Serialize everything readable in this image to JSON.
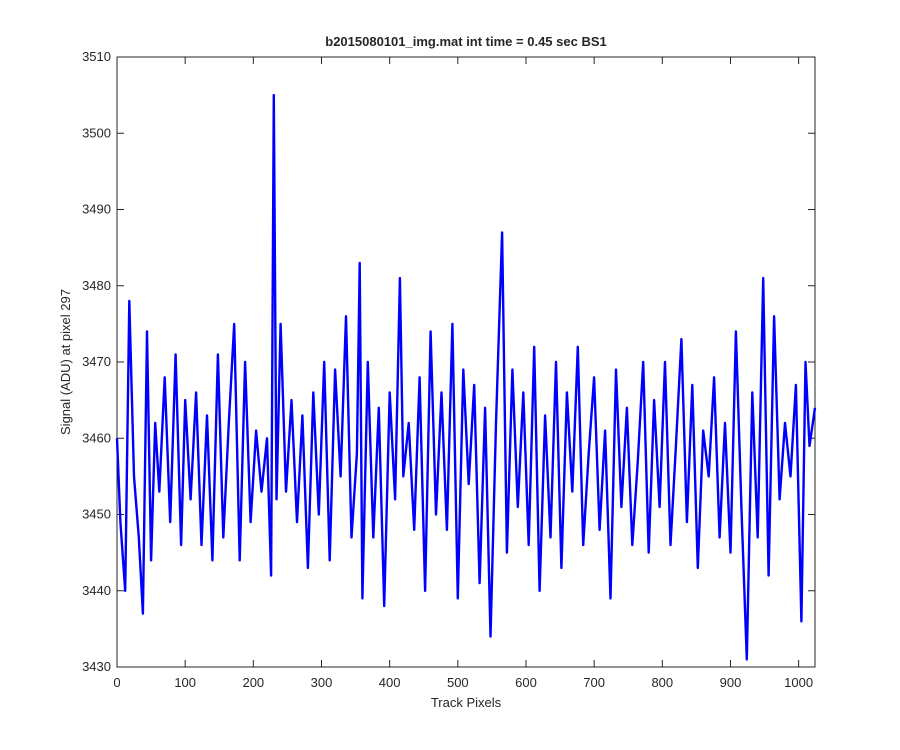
{
  "chart_data": {
    "type": "line",
    "title": "b2015080101_img.mat int time = 0.45 sec   BS1",
    "xlabel": "Track Pixels",
    "ylabel": "Signal (ADU) at pixel 297",
    "xlim": [
      0,
      1024
    ],
    "ylim": [
      3430,
      3510
    ],
    "xticks": [
      0,
      100,
      200,
      300,
      400,
      500,
      600,
      700,
      800,
      900,
      1000
    ],
    "yticks": [
      3430,
      3440,
      3450,
      3460,
      3470,
      3480,
      3490,
      3500,
      3510
    ],
    "grid": false,
    "legend": "none",
    "series_color": "#0000ff",
    "axis_color": "#262626",
    "series": [
      {
        "x": [
          0,
          5,
          12,
          18,
          25,
          32,
          38,
          44,
          50,
          56,
          62,
          70,
          78,
          86,
          94,
          100,
          108,
          116,
          124,
          132,
          140,
          148,
          156,
          164,
          172,
          180,
          188,
          196,
          204,
          212,
          220,
          226,
          230,
          234,
          240,
          248,
          256,
          264,
          272,
          280,
          288,
          296,
          304,
          312,
          320,
          328,
          336,
          344,
          352,
          356,
          360,
          368,
          376,
          384,
          392,
          400,
          408,
          415,
          420,
          428,
          436,
          444,
          452,
          460,
          468,
          476,
          484,
          492,
          500,
          508,
          516,
          524,
          532,
          540,
          548,
          556,
          565,
          572,
          580,
          588,
          596,
          604,
          612,
          620,
          628,
          636,
          644,
          652,
          660,
          668,
          676,
          684,
          692,
          700,
          708,
          716,
          724,
          732,
          740,
          748,
          756,
          764,
          772,
          780,
          788,
          796,
          804,
          812,
          820,
          828,
          836,
          844,
          852,
          860,
          868,
          876,
          884,
          892,
          900,
          908,
          916,
          924,
          932,
          940,
          948,
          956,
          964,
          972,
          980,
          988,
          996,
          1004,
          1010,
          1016,
          1024
        ],
        "values": [
          3460,
          3449,
          3440,
          3478,
          3455,
          3447,
          3437,
          3474,
          3444,
          3462,
          3453,
          3468,
          3449,
          3471,
          3446,
          3465,
          3452,
          3466,
          3446,
          3463,
          3444,
          3471,
          3447,
          3462,
          3475,
          3444,
          3470,
          3449,
          3461,
          3453,
          3460,
          3442,
          3505,
          3452,
          3475,
          3453,
          3465,
          3449,
          3463,
          3443,
          3466,
          3450,
          3470,
          3444,
          3469,
          3455,
          3476,
          3447,
          3458,
          3483,
          3439,
          3470,
          3447,
          3464,
          3438,
          3466,
          3452,
          3481,
          3455,
          3462,
          3448,
          3468,
          3440,
          3474,
          3450,
          3466,
          3448,
          3475,
          3439,
          3469,
          3454,
          3467,
          3441,
          3464,
          3434,
          3462,
          3487,
          3445,
          3469,
          3451,
          3466,
          3446,
          3472,
          3440,
          3463,
          3447,
          3470,
          3443,
          3466,
          3453,
          3472,
          3446,
          3458,
          3468,
          3448,
          3461,
          3439,
          3469,
          3451,
          3464,
          3446,
          3457,
          3470,
          3445,
          3465,
          3451,
          3470,
          3446,
          3459,
          3473,
          3449,
          3467,
          3443,
          3461,
          3455,
          3468,
          3447,
          3462,
          3445,
          3474,
          3451,
          3431,
          3466,
          3447,
          3481,
          3442,
          3476,
          3452,
          3462,
          3455,
          3467,
          3436,
          3470,
          3459,
          3464
        ]
      }
    ]
  }
}
